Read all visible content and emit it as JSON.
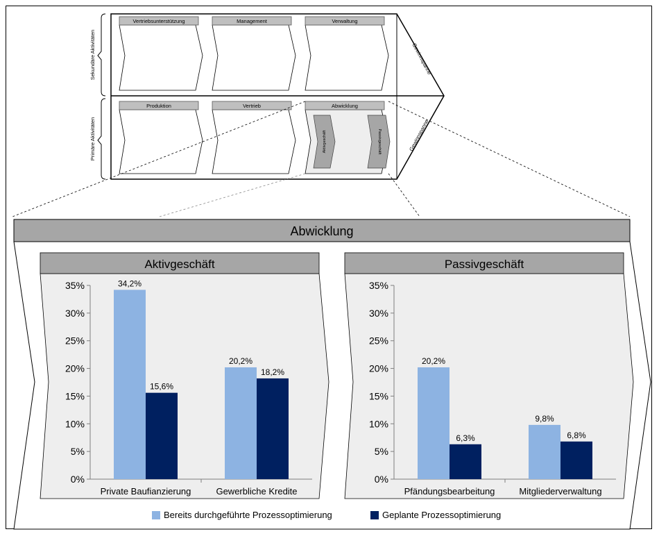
{
  "value_chain": {
    "secondary_label": "Sekundäre Aktivitäten",
    "primary_label": "Primäre Aktivitäten",
    "secondary_items": [
      "Vertriebsunterstützung",
      "Management",
      "Verwaltung"
    ],
    "primary_items": [
      "Produktion",
      "Vertrieb",
      "Abwicklung"
    ],
    "margin_label": "Gewinnspanne",
    "sub_items": [
      "Aktivgeschäft",
      "Passivgeschäft"
    ]
  },
  "main_title": "Abwicklung",
  "legend": {
    "items": [
      {
        "label": "Bereits durchgeführte Prozessoptimierung",
        "color": "#8db3e2"
      },
      {
        "label": "Geplante Prozessoptimierung",
        "color": "#002060"
      }
    ]
  },
  "chart_data": [
    {
      "type": "bar",
      "title": "Aktivgeschäft",
      "categories": [
        "Private Baufianzierung",
        "Gewerbliche Kredite"
      ],
      "series": [
        {
          "name": "Bereits durchgeführte Prozessoptimierung",
          "values": [
            34.2,
            20.2
          ],
          "labels": [
            "34,2%",
            "20,2%"
          ]
        },
        {
          "name": "Geplante Prozessoptimierung",
          "values": [
            15.6,
            18.2
          ],
          "labels": [
            "15,6%",
            "18,2%"
          ]
        }
      ],
      "ylim": [
        0,
        35
      ],
      "yticks": [
        "0%",
        "5%",
        "10%",
        "15%",
        "20%",
        "25%",
        "30%",
        "35%"
      ],
      "grid": false
    },
    {
      "type": "bar",
      "title": "Passivgeschäft",
      "categories": [
        "Pfändungsbearbeitung",
        "Mitgliederverwaltung"
      ],
      "series": [
        {
          "name": "Bereits durchgeführte Prozessoptimierung",
          "values": [
            20.2,
            9.8
          ],
          "labels": [
            "20,2%",
            "9,8%"
          ]
        },
        {
          "name": "Geplante Prozessoptimierung",
          "values": [
            6.3,
            6.8
          ],
          "labels": [
            "6,3%",
            "6,8%"
          ]
        }
      ],
      "ylim": [
        0,
        35
      ],
      "yticks": [
        "0%",
        "5%",
        "10%",
        "15%",
        "20%",
        "25%",
        "30%",
        "35%"
      ],
      "grid": false
    }
  ]
}
